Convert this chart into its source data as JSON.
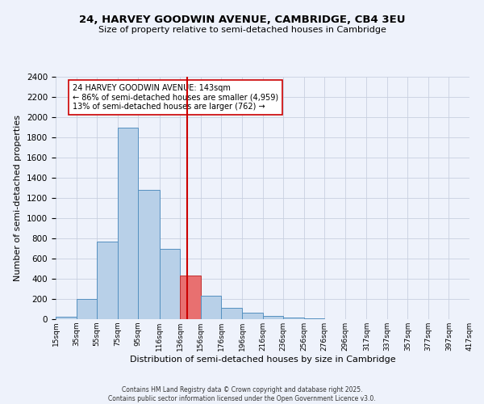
{
  "title": "24, HARVEY GOODWIN AVENUE, CAMBRIDGE, CB4 3EU",
  "subtitle": "Size of property relative to semi-detached houses in Cambridge",
  "xlabel": "Distribution of semi-detached houses by size in Cambridge",
  "ylabel": "Number of semi-detached properties",
  "annotation_line1": "24 HARVEY GOODWIN AVENUE: 143sqm",
  "annotation_line2": "← 86% of semi-detached houses are smaller (4,959)",
  "annotation_line3": "13% of semi-detached houses are larger (762) →",
  "property_size": 143,
  "bin_edges": [
    15,
    35,
    55,
    75,
    95,
    116,
    136,
    156,
    176,
    196,
    216,
    236,
    256,
    276,
    296,
    317,
    337,
    357,
    377,
    397,
    417
  ],
  "bin_labels": [
    "15sqm",
    "35sqm",
    "55sqm",
    "75sqm",
    "95sqm",
    "116sqm",
    "136sqm",
    "156sqm",
    "176sqm",
    "196sqm",
    "216sqm",
    "236sqm",
    "256sqm",
    "276sqm",
    "296sqm",
    "317sqm",
    "337sqm",
    "357sqm",
    "377sqm",
    "397sqm",
    "417sqm"
  ],
  "counts": [
    25,
    200,
    770,
    1900,
    1280,
    700,
    435,
    230,
    110,
    65,
    35,
    20,
    8,
    3,
    0,
    0,
    0,
    0,
    0,
    0
  ],
  "bar_color": "#b8d0e8",
  "bar_edge_color": "#5590c0",
  "highlight_bar_index": 6,
  "highlight_bar_color": "#e87070",
  "highlight_bar_edge_color": "#c03030",
  "vline_x": 143,
  "vline_color": "#cc0000",
  "background_color": "#eef2fb",
  "grid_color": "#c8d0e0",
  "footer_line1": "Contains HM Land Registry data © Crown copyright and database right 2025.",
  "footer_line2": "Contains public sector information licensed under the Open Government Licence v3.0.",
  "ylim": [
    0,
    2400
  ],
  "yticks": [
    0,
    200,
    400,
    600,
    800,
    1000,
    1200,
    1400,
    1600,
    1800,
    2000,
    2200,
    2400
  ]
}
